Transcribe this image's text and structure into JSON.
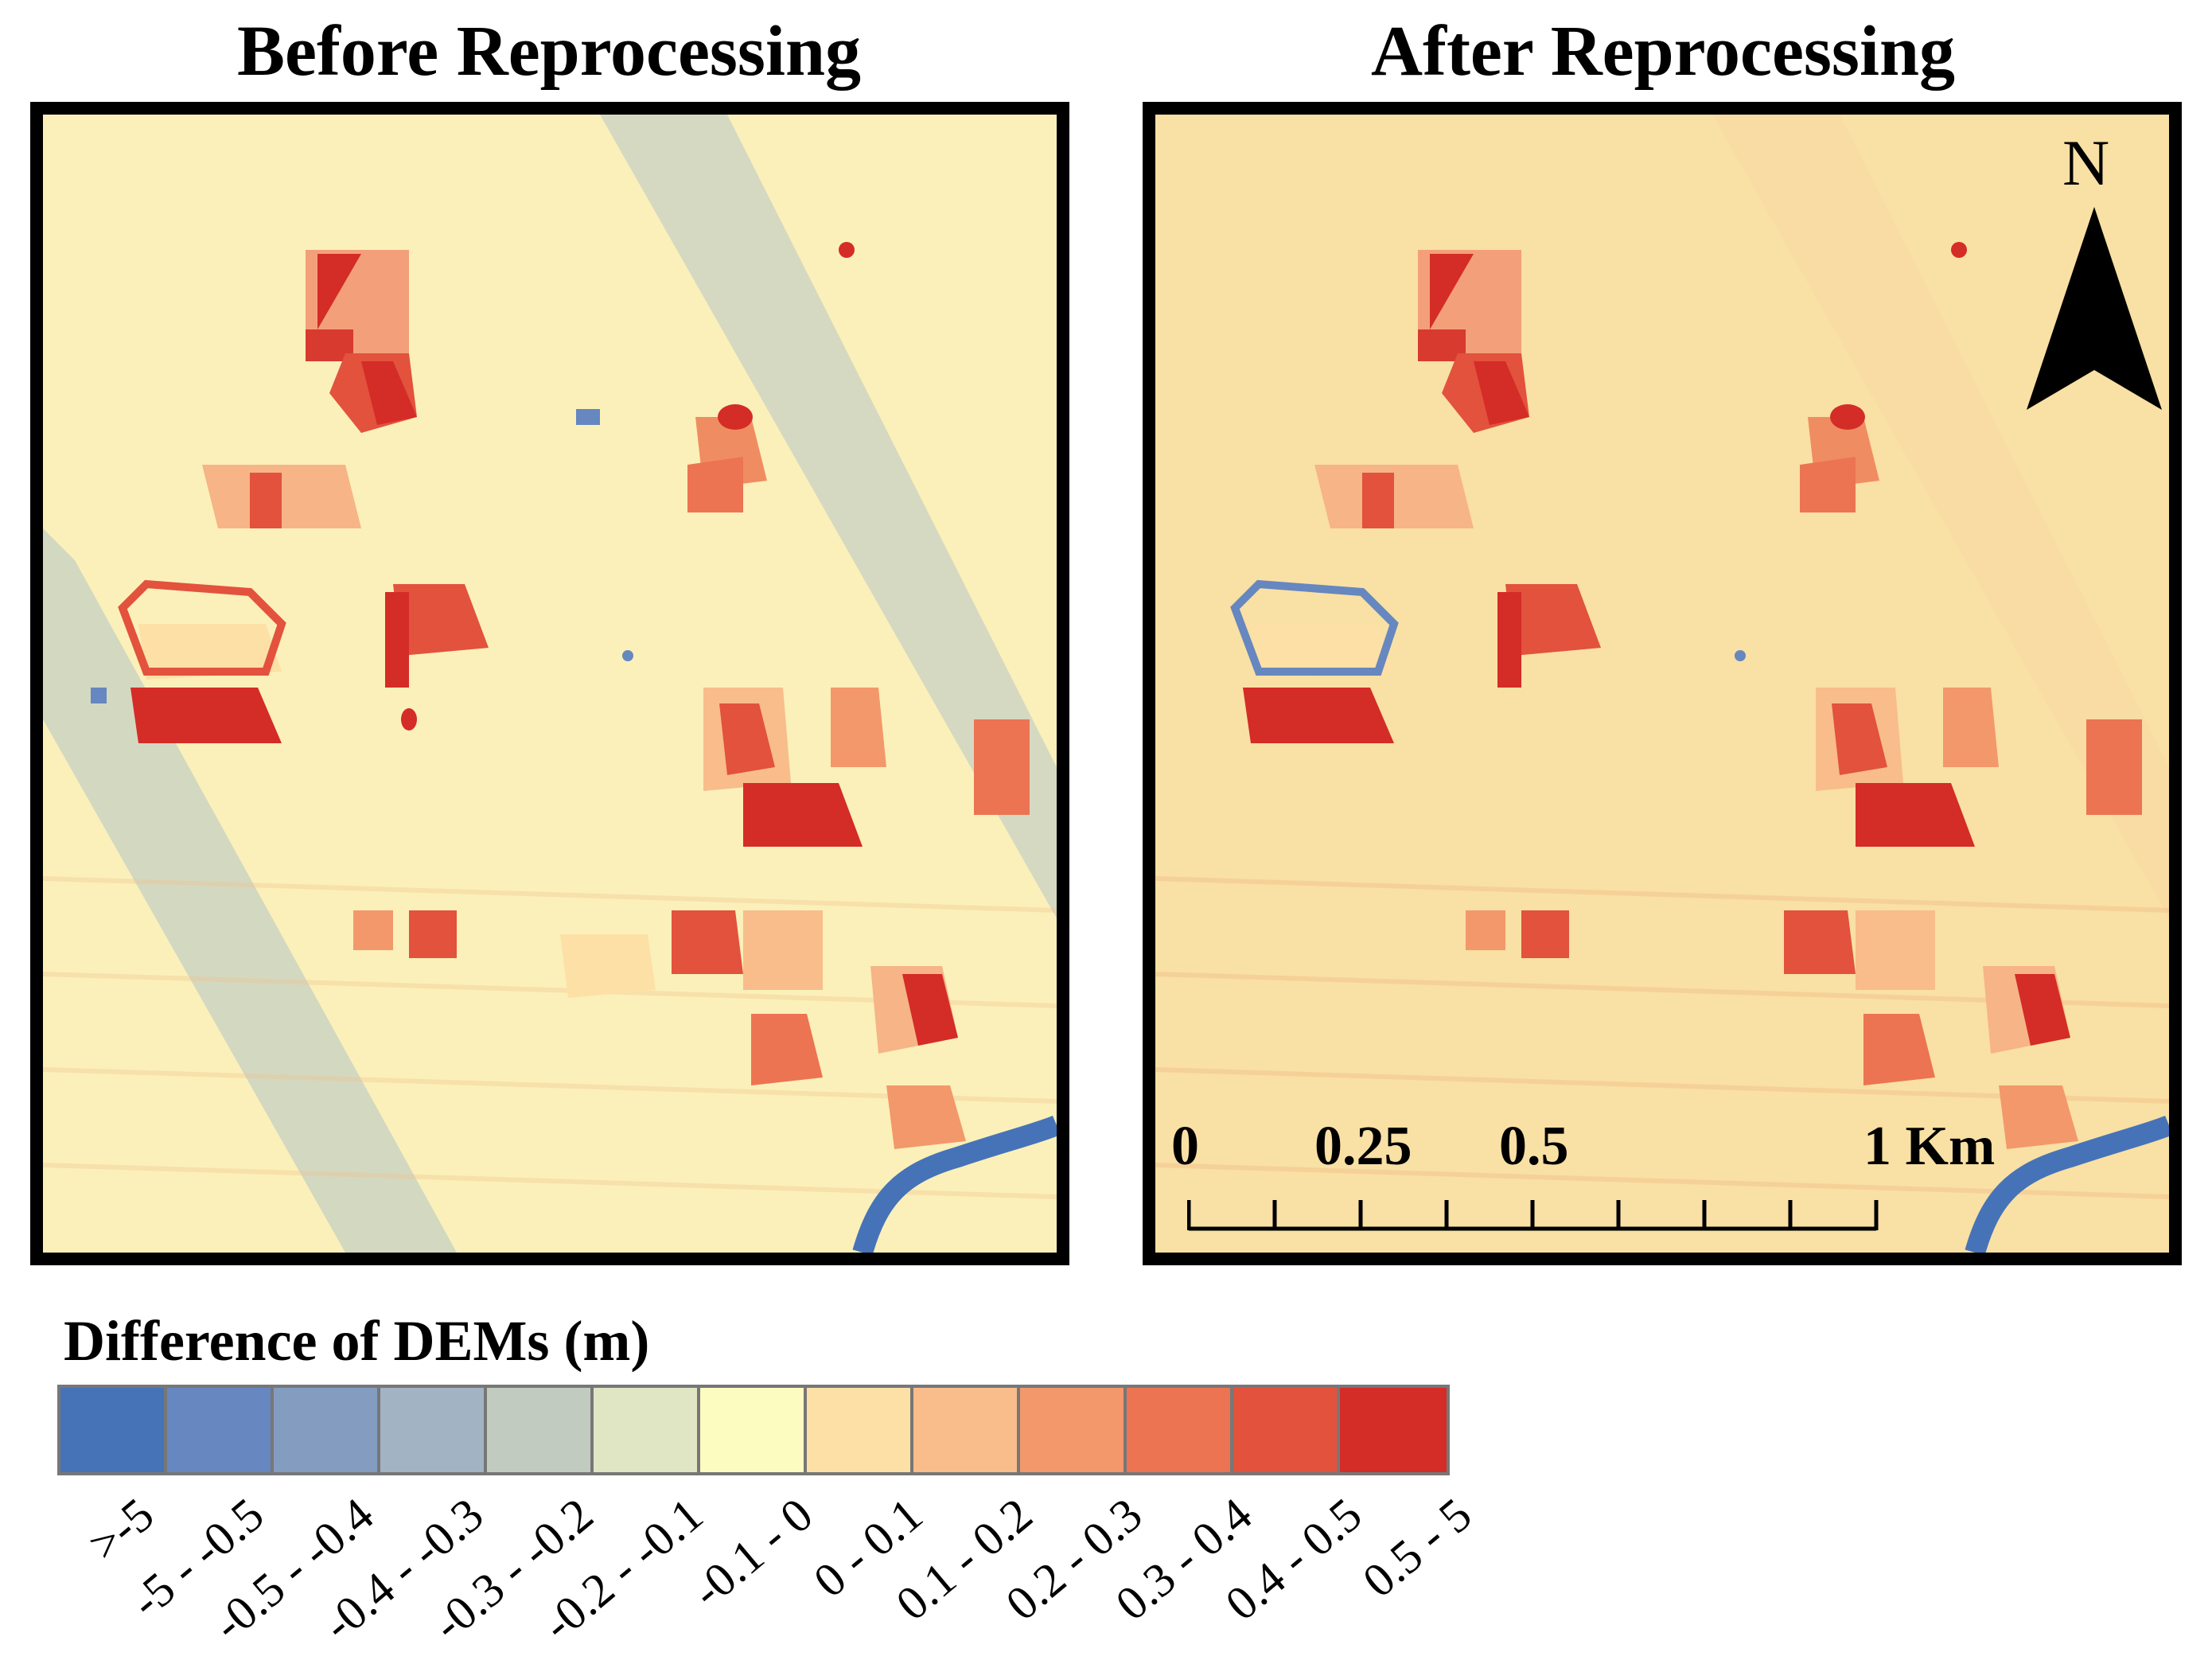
{
  "panels": {
    "left_title": "Before Reprocessing",
    "right_title": "After Reprocessing"
  },
  "north_arrow": {
    "label": "N"
  },
  "scale_bar": {
    "labels": [
      "0",
      "0.25",
      "0.5",
      "1 Km"
    ],
    "ticks_km": [
      0,
      0.125,
      0.25,
      0.375,
      0.5,
      0.625,
      0.75,
      0.875,
      1
    ]
  },
  "legend": {
    "title": "Difference of DEMs (m)",
    "classes": [
      {
        "label": ">-5",
        "color": "#4673b8"
      },
      {
        "label": "-5 - -0.5",
        "color": "#6687bf"
      },
      {
        "label": "-0.5 - -0.4",
        "color": "#839cc0"
      },
      {
        "label": "-0.4 - -0.3",
        "color": "#a2b3c3"
      },
      {
        "label": "-0.3 - -0.2",
        "color": "#c2cbc0"
      },
      {
        "label": "-0.2 - -0.1",
        "color": "#e0e5c4"
      },
      {
        "label": "-0.1 - 0",
        "color": "#fdfcc0"
      },
      {
        "label": "0 - 0.1",
        "color": "#fde0a6"
      },
      {
        "label": "0.1 - 0.2",
        "color": "#f8bd8a"
      },
      {
        "label": "0.2 - 0.3",
        "color": "#f3986b"
      },
      {
        "label": "0.3 - 0.4",
        "color": "#ec7452"
      },
      {
        "label": "0.4 - 0.5",
        "color": "#e2523c"
      },
      {
        "label": "0.5 - 5",
        "color": "#d42c27"
      }
    ]
  }
}
